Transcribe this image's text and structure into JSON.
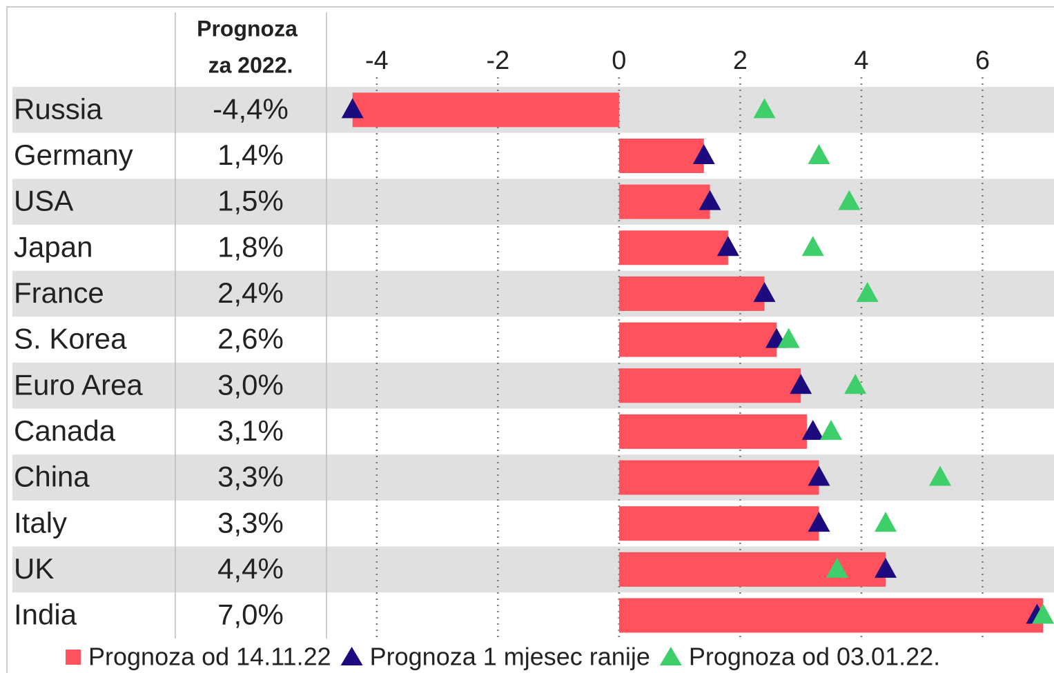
{
  "chart_data": {
    "type": "bar",
    "orientation": "horizontal",
    "column_header": [
      "Prognoza",
      "za 2022."
    ],
    "categories": [
      "Russia",
      "Germany",
      "USA",
      "Japan",
      "France",
      "S. Korea",
      "Euro Area",
      "Canada",
      "China",
      "Italy",
      "UK",
      "India"
    ],
    "series": [
      {
        "name": "Prognoza od 14.11.22",
        "marker": "bar",
        "color": "#ff525c",
        "values": [
          -4.4,
          1.4,
          1.5,
          1.8,
          2.4,
          2.6,
          3.0,
          3.1,
          3.3,
          3.3,
          4.4,
          7.0
        ],
        "value_labels": [
          "-4,4%",
          "1,4%",
          "1,5%",
          "1,8%",
          "2,4%",
          "2,6%",
          "3,0%",
          "3,1%",
          "3,3%",
          "3,3%",
          "4,4%",
          "7,0%"
        ]
      },
      {
        "name": "Prognoza 1 mjesec ranije",
        "marker": "triangle",
        "color": "#1c0a7e",
        "values": [
          -4.4,
          1.4,
          1.5,
          1.8,
          2.4,
          2.6,
          3.0,
          3.2,
          3.3,
          3.3,
          4.4,
          6.9
        ]
      },
      {
        "name": "Prognoza od 03.01.22.",
        "marker": "triangle",
        "color": "#3fcf6a",
        "values": [
          2.4,
          3.3,
          3.8,
          3.2,
          4.1,
          2.8,
          3.9,
          3.5,
          5.3,
          4.4,
          3.6,
          7.0
        ]
      }
    ],
    "xlim": [
      -4.83,
      7.18
    ],
    "xticks": [
      -4,
      -2,
      0,
      2,
      4,
      6
    ],
    "grid": true
  }
}
